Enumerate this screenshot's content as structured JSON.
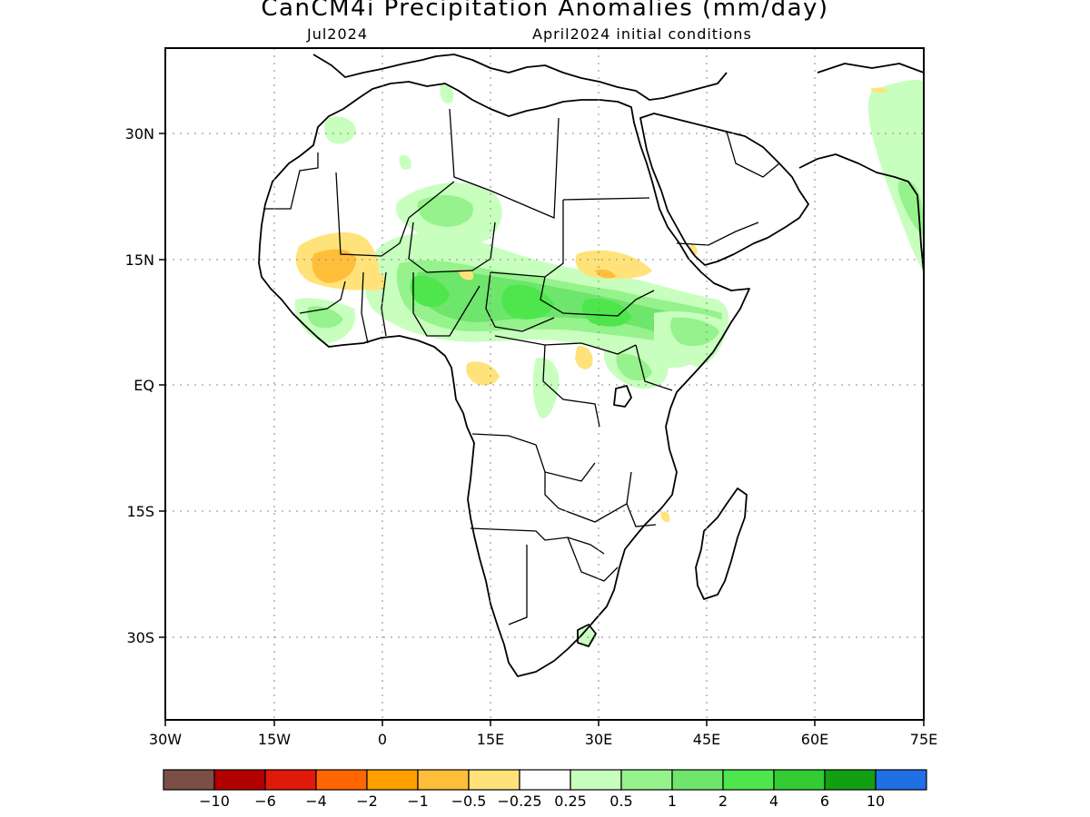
{
  "title": "CanCM4i Precipitation Anomalies (mm/day)",
  "valid_month": "Jul2024",
  "initial_conditions": "April2024 initial conditions",
  "lon_ticks": [
    "30W",
    "15W",
    "0",
    "15E",
    "30E",
    "45E",
    "60E",
    "75E"
  ],
  "lat_ticks": [
    "30N",
    "15N",
    "EQ",
    "15S",
    "30S"
  ],
  "colorbar": {
    "colors": [
      "#7b4f45",
      "#b30000",
      "#e01a0a",
      "#ff6600",
      "#ff9f00",
      "#ffbe3a",
      "#ffe37a",
      "#ffffff",
      "#c8ffbe",
      "#96f28c",
      "#6ee56b",
      "#4ee64c",
      "#33cc33",
      "#12a012",
      "#1f6fe5"
    ],
    "labels": [
      "−10",
      "−6",
      "−4",
      "−2",
      "−1",
      "−0.5",
      "−0.25",
      "0.25",
      "0.5",
      "1",
      "2",
      "4",
      "6",
      "10"
    ]
  },
  "anomaly_colors": {
    "dry_light": "#ffe37a",
    "dry_mid": "#ffbe3a",
    "dry_strong": "#ff9f00",
    "wet_light": "#c8ffbe",
    "wet_mid": "#96f28c",
    "wet_strong": "#6ee56b",
    "wet_max": "#4ee64c"
  },
  "grid_lines": "dotted"
}
